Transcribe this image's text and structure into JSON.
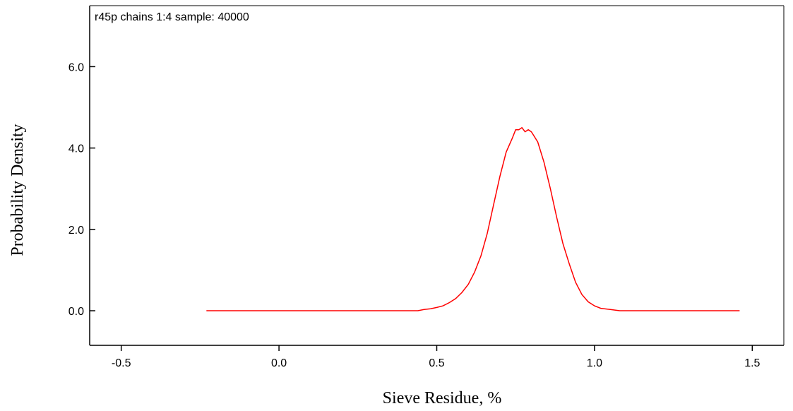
{
  "chart_data": {
    "type": "line",
    "title": "r45p chains 1:4 sample: 40000",
    "xlabel": "Sieve Residue, %",
    "ylabel": "Probability Density",
    "xlim": [
      -0.6,
      1.6
    ],
    "ylim": [
      -0.85,
      7.5
    ],
    "xticks": [
      -0.5,
      0.0,
      0.5,
      1.0,
      1.5
    ],
    "xtick_labels": [
      "-0.5",
      "0.0",
      "0.5",
      "1.0",
      "1.5"
    ],
    "yticks": [
      0.0,
      2.0,
      4.0,
      6.0
    ],
    "ytick_labels": [
      "0.0",
      "2.0",
      "4.0",
      "6.0"
    ],
    "grid": false,
    "line_color": "#ff0000",
    "series": [
      {
        "x": [
          -0.23,
          0.0,
          0.2,
          0.44,
          0.46,
          0.48,
          0.5,
          0.52,
          0.54,
          0.56,
          0.58,
          0.6,
          0.62,
          0.64,
          0.66,
          0.68,
          0.7,
          0.72,
          0.74,
          0.75,
          0.76,
          0.77,
          0.78,
          0.79,
          0.8,
          0.82,
          0.84,
          0.86,
          0.88,
          0.9,
          0.92,
          0.94,
          0.96,
          0.98,
          1.0,
          1.02,
          1.05,
          1.08,
          1.2,
          1.46
        ],
        "y": [
          0.0,
          0.0,
          0.0,
          0.0,
          0.03,
          0.05,
          0.08,
          0.12,
          0.2,
          0.3,
          0.45,
          0.65,
          0.95,
          1.35,
          1.9,
          2.6,
          3.3,
          3.9,
          4.25,
          4.45,
          4.45,
          4.5,
          4.4,
          4.45,
          4.4,
          4.15,
          3.65,
          3.0,
          2.3,
          1.65,
          1.15,
          0.7,
          0.4,
          0.22,
          0.12,
          0.06,
          0.03,
          0.0,
          0.0,
          0.0
        ]
      }
    ]
  }
}
